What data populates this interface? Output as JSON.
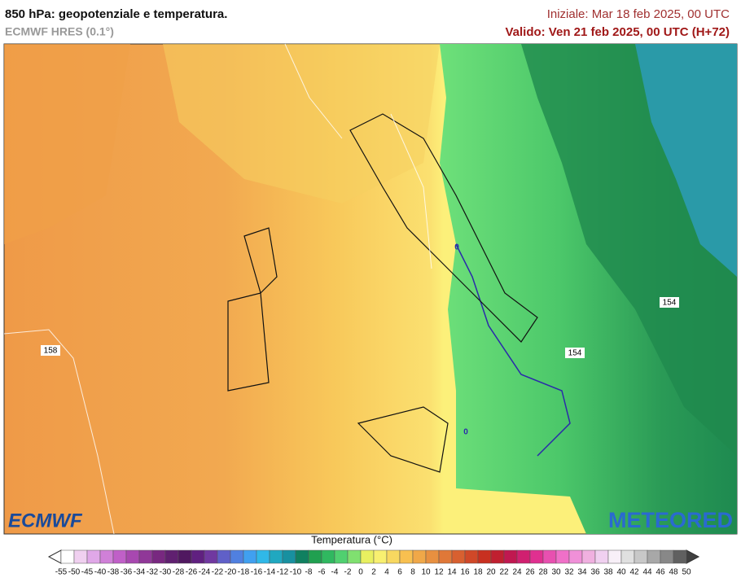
{
  "header": {
    "title": "850 hPa: geopotenziale e temperatura.",
    "subtitle": "ECMWF HRES (0.1°)",
    "init": "Iniziale: Mar 18 feb 2025, 00 UTC",
    "valid": "Valido: Ven 21 feb 2025, 00 UTC (H+72)"
  },
  "map": {
    "contour_labels": [
      "158",
      "154",
      "154",
      "0",
      "0"
    ]
  },
  "logos": {
    "left": "ECMWF",
    "right": "METEORED"
  },
  "colorbar": {
    "label": "Temperatura (°C)",
    "ticks": [
      -55,
      -50,
      -45,
      -40,
      -38,
      -36,
      -34,
      -32,
      -30,
      -28,
      -26,
      -24,
      -22,
      -20,
      -18,
      -16,
      -14,
      -12,
      -10,
      -8,
      -6,
      -4,
      -2,
      0,
      2,
      4,
      6,
      8,
      10,
      12,
      14,
      16,
      18,
      20,
      22,
      24,
      26,
      28,
      30,
      32,
      34,
      36,
      38,
      40,
      42,
      44,
      46,
      48,
      50
    ],
    "colors": [
      "#ffffff",
      "#f0d0f0",
      "#e0a8e8",
      "#d080d8",
      "#c060c8",
      "#a848b0",
      "#903898",
      "#782880",
      "#602070",
      "#501860",
      "#602080",
      "#7038a0",
      "#6060c8",
      "#5080e0",
      "#40a0f0",
      "#30b8e8",
      "#20a8c0",
      "#1890a0",
      "#108060",
      "#20a050",
      "#30b860",
      "#50d070",
      "#80e070",
      "#e8f060",
      "#f8f070",
      "#f8d860",
      "#f8c050",
      "#f0a848",
      "#e89040",
      "#e07838",
      "#d86030",
      "#d04828",
      "#c83020",
      "#c02030",
      "#c01850",
      "#d02070",
      "#e03090",
      "#e850b0",
      "#f070c8",
      "#f090d8",
      "#f0b0e0",
      "#f0d0f0",
      "#f8f0f8",
      "#e0e0e0",
      "#c8c8c8",
      "#a8a8a8",
      "#888888",
      "#606060"
    ]
  }
}
